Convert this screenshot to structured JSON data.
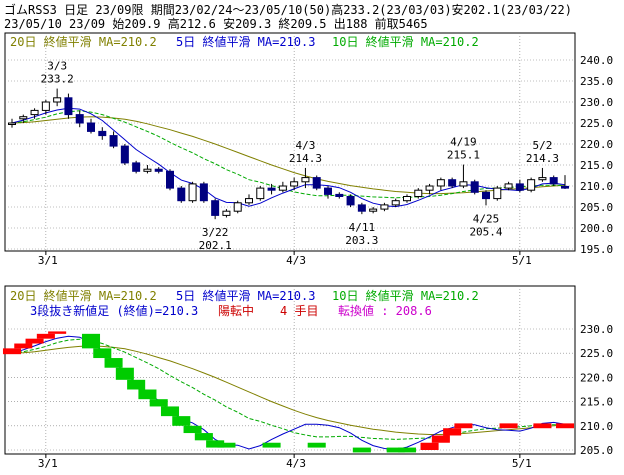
{
  "header": {
    "line1": "ゴムRSS3 日足 23/09限 期間23/02/24～23/05/10(50)高233.2(23/03/03)安202.1(23/03/22)",
    "line2": "23/05/10 23/09 始209.9 高212.6 安209.3 終209.5 出188 前取5465"
  },
  "colors": {
    "ma20": "#808000",
    "ma5": "#0000cc",
    "ma10": "#00aa00",
    "up_candle": "#ffffff",
    "down_candle": "#000080",
    "ann_high": "#cc0000",
    "ann_low": "#009900",
    "three_line_up": "#ff0000",
    "three_line_down": "#00cc00",
    "grid": "#808080",
    "frame": "#000000"
  },
  "upper_legend": {
    "ma20": "20日 終値平滑 MA=210.2",
    "ma5": "5日 終値平滑 MA=210.3",
    "ma10": "10日 終値平滑 MA=210.2"
  },
  "lower_legend": {
    "ma20": "20日 終値平滑 MA=210.2",
    "ma5": "5日 終値平滑 MA=210.3",
    "ma10": "10日 終値平滑 MA=210.2",
    "status_main": "3段抜き新値足 (終値)=210.3",
    "status_state": "陽転中",
    "status_count": "4 手目",
    "status_reversal": "転換値 : 208.6"
  },
  "chart_data": [
    {
      "type": "candlestick",
      "x_labels": [
        "3/1",
        "4/3",
        "5/1"
      ],
      "x_label_index": [
        3,
        25,
        45
      ],
      "ylim": [
        195,
        240
      ],
      "yticks": [
        "195.0",
        "200.0",
        "205.0",
        "210.0",
        "215.0",
        "220.0",
        "225.0",
        "230.0",
        "235.0",
        "240.0"
      ],
      "ohlc": [
        [
          224.8,
          226.0,
          223.9,
          225.0
        ],
        [
          226.0,
          227.0,
          225.0,
          226.5
        ],
        [
          227.0,
          228.5,
          226.0,
          228.0
        ],
        [
          228.0,
          230.5,
          227.0,
          230.0
        ],
        [
          230.0,
          233.2,
          229.0,
          231.0
        ],
        [
          231.0,
          232.0,
          226.0,
          227.0
        ],
        [
          227.0,
          228.0,
          224.0,
          225.0
        ],
        [
          225.0,
          226.0,
          222.5,
          223.0
        ],
        [
          223.0,
          224.0,
          221.0,
          222.0
        ],
        [
          222.0,
          223.0,
          219.0,
          219.5
        ],
        [
          219.5,
          220.0,
          215.0,
          215.5
        ],
        [
          215.5,
          216.0,
          213.0,
          213.5
        ],
        [
          213.5,
          215.0,
          213.0,
          214.0
        ],
        [
          214.0,
          214.5,
          213.0,
          213.5
        ],
        [
          213.5,
          214.0,
          209.0,
          209.5
        ],
        [
          209.5,
          210.0,
          206.0,
          206.5
        ],
        [
          206.5,
          211.0,
          206.0,
          210.5
        ],
        [
          210.5,
          211.0,
          206.0,
          206.5
        ],
        [
          206.5,
          207.0,
          202.1,
          203.0
        ],
        [
          203.0,
          204.5,
          202.5,
          204.0
        ],
        [
          204.0,
          206.5,
          203.5,
          206.0
        ],
        [
          206.0,
          208.0,
          205.5,
          207.0
        ],
        [
          207.0,
          210.0,
          206.5,
          209.5
        ],
        [
          209.5,
          210.5,
          208.0,
          209.0
        ],
        [
          209.0,
          211.0,
          208.5,
          210.0
        ],
        [
          210.0,
          212.0,
          209.0,
          211.0
        ],
        [
          211.0,
          214.3,
          209.5,
          212.0
        ],
        [
          212.0,
          212.5,
          209.0,
          209.5
        ],
        [
          209.5,
          210.0,
          207.0,
          208.0
        ],
        [
          208.0,
          208.5,
          207.0,
          207.5
        ],
        [
          207.5,
          208.0,
          205.0,
          205.5
        ],
        [
          205.5,
          206.0,
          203.3,
          204.0
        ],
        [
          204.0,
          205.0,
          203.5,
          204.5
        ],
        [
          204.5,
          206.0,
          204.0,
          205.5
        ],
        [
          205.5,
          207.0,
          205.0,
          206.5
        ],
        [
          206.5,
          208.0,
          206.0,
          207.5
        ],
        [
          207.5,
          209.5,
          207.0,
          209.0
        ],
        [
          209.0,
          210.5,
          208.0,
          210.0
        ],
        [
          210.0,
          212.0,
          209.0,
          211.5
        ],
        [
          211.5,
          212.0,
          209.5,
          210.0
        ],
        [
          210.0,
          215.1,
          209.5,
          211.0
        ],
        [
          211.0,
          211.5,
          208.0,
          208.5
        ],
        [
          208.5,
          209.0,
          205.4,
          207.0
        ],
        [
          207.0,
          210.0,
          206.5,
          209.5
        ],
        [
          209.5,
          211.0,
          209.0,
          210.5
        ],
        [
          210.5,
          211.5,
          208.5,
          209.0
        ],
        [
          209.0,
          212.0,
          208.5,
          211.5
        ],
        [
          211.5,
          214.3,
          211.0,
          212.0
        ],
        [
          212.0,
          212.5,
          210.0,
          210.5
        ],
        [
          209.9,
          212.6,
          209.3,
          209.5
        ]
      ],
      "ma5": [
        225.0,
        225.7,
        226.5,
        227.4,
        228.1,
        228.5,
        228.3,
        227.2,
        225.6,
        223.3,
        221.0,
        218.7,
        216.9,
        215.2,
        213.2,
        211.4,
        210.6,
        209.2,
        207.2,
        206.1,
        206.0,
        205.2,
        205.9,
        207.2,
        208.3,
        209.3,
        210.3,
        210.3,
        210.1,
        209.6,
        208.5,
        207.0,
        205.9,
        205.3,
        205.1,
        205.6,
        206.6,
        207.7,
        208.9,
        209.6,
        210.3,
        210.2,
        209.6,
        209.2,
        209.1,
        208.9,
        209.5,
        210.5,
        210.7,
        210.3
      ],
      "ma10": [
        225.0,
        225.3,
        225.8,
        226.4,
        227.2,
        227.7,
        227.9,
        227.6,
        227.0,
        226.1,
        225.2,
        224.1,
        223.0,
        221.8,
        220.4,
        219.1,
        217.9,
        216.5,
        215.3,
        213.9,
        212.8,
        211.5,
        210.9,
        210.1,
        209.4,
        208.6,
        208.1,
        207.7,
        207.7,
        207.8,
        207.8,
        207.6,
        207.4,
        207.3,
        207.2,
        207.3,
        207.4,
        207.5,
        207.8,
        208.2,
        208.7,
        209.1,
        209.4,
        209.5,
        209.7,
        209.8,
        210.0,
        210.2,
        210.2,
        210.2
      ],
      "ma20": [
        225.0,
        225.1,
        225.3,
        225.6,
        225.9,
        226.2,
        226.4,
        226.5,
        226.4,
        226.2,
        225.9,
        225.4,
        224.8,
        224.1,
        223.4,
        222.6,
        221.8,
        220.9,
        220.0,
        219.0,
        218.0,
        217.0,
        216.0,
        215.0,
        214.1,
        213.2,
        212.4,
        211.7,
        211.1,
        210.6,
        210.1,
        209.7,
        209.3,
        209.0,
        208.7,
        208.5,
        208.3,
        208.2,
        208.2,
        208.3,
        208.4,
        208.6,
        208.8,
        209.0,
        209.2,
        209.4,
        209.6,
        209.8,
        210.0,
        210.2
      ],
      "annotations": [
        {
          "date": "3/3",
          "value": "233.2",
          "index": 4,
          "kind": "high"
        },
        {
          "date": "3/22",
          "value": "202.1",
          "index": 18,
          "kind": "low"
        },
        {
          "date": "4/3",
          "value": "214.3",
          "index": 26,
          "kind": "high"
        },
        {
          "date": "4/11",
          "value": "203.3",
          "index": 31,
          "kind": "low"
        },
        {
          "date": "4/19",
          "value": "215.1",
          "index": 40,
          "kind": "high"
        },
        {
          "date": "4/25",
          "value": "205.4",
          "index": 42,
          "kind": "low"
        },
        {
          "date": "5/2",
          "value": "214.3",
          "index": 47,
          "kind": "high"
        }
      ]
    },
    {
      "type": "three-line-break",
      "x_labels": [
        "3/1",
        "4/3",
        "5/1"
      ],
      "x_label_index": [
        3,
        25,
        45
      ],
      "ylim": [
        205,
        230
      ],
      "yticks": [
        "205.0",
        "210.0",
        "215.0",
        "220.0",
        "225.0",
        "230.0"
      ],
      "blocks": [
        {
          "index": 0,
          "from": 224.8,
          "to": 226.0,
          "dir": "up"
        },
        {
          "index": 1,
          "from": 226.0,
          "to": 227.0,
          "dir": "up"
        },
        {
          "index": 2,
          "from": 227.0,
          "to": 228.0,
          "dir": "up"
        },
        {
          "index": 3,
          "from": 228.0,
          "to": 229.0,
          "dir": "up"
        },
        {
          "index": 4,
          "from": 229.0,
          "to": 229.5,
          "dir": "up"
        },
        {
          "index": 7,
          "from": 229.0,
          "to": 226.0,
          "dir": "down"
        },
        {
          "index": 8,
          "from": 226.0,
          "to": 224.0,
          "dir": "down"
        },
        {
          "index": 9,
          "from": 224.0,
          "to": 222.0,
          "dir": "down"
        },
        {
          "index": 10,
          "from": 222.0,
          "to": 219.5,
          "dir": "down"
        },
        {
          "index": 11,
          "from": 219.5,
          "to": 217.5,
          "dir": "down"
        },
        {
          "index": 12,
          "from": 217.5,
          "to": 215.5,
          "dir": "down"
        },
        {
          "index": 13,
          "from": 215.5,
          "to": 214.0,
          "dir": "down"
        },
        {
          "index": 14,
          "from": 214.0,
          "to": 212.0,
          "dir": "down"
        },
        {
          "index": 15,
          "from": 212.0,
          "to": 210.0,
          "dir": "down"
        },
        {
          "index": 16,
          "from": 210.0,
          "to": 208.5,
          "dir": "down"
        },
        {
          "index": 17,
          "from": 208.5,
          "to": 207.0,
          "dir": "down"
        },
        {
          "index": 18,
          "from": 207.0,
          "to": 205.5,
          "dir": "down"
        },
        {
          "index": 19,
          "from": 206.5,
          "to": 205.5,
          "dir": "down"
        },
        {
          "index": 23,
          "from": 206.5,
          "to": 205.5,
          "dir": "down"
        },
        {
          "index": 27,
          "from": 206.5,
          "to": 205.5,
          "dir": "down"
        },
        {
          "index": 31,
          "from": 205.5,
          "to": 204.5,
          "dir": "down"
        },
        {
          "index": 34,
          "from": 205.5,
          "to": 204.5,
          "dir": "down"
        },
        {
          "index": 35,
          "from": 205.5,
          "to": 204.5,
          "dir": "down"
        },
        {
          "index": 37,
          "from": 205.0,
          "to": 206.5,
          "dir": "up"
        },
        {
          "index": 38,
          "from": 206.5,
          "to": 208.0,
          "dir": "up"
        },
        {
          "index": 39,
          "from": 208.0,
          "to": 209.5,
          "dir": "up"
        },
        {
          "index": 40,
          "from": 209.5,
          "to": 210.5,
          "dir": "up"
        },
        {
          "index": 44,
          "from": 209.5,
          "to": 210.5,
          "dir": "up"
        },
        {
          "index": 47,
          "from": 209.5,
          "to": 210.5,
          "dir": "up"
        },
        {
          "index": 49,
          "from": 209.5,
          "to": 210.5,
          "dir": "up"
        }
      ]
    }
  ]
}
